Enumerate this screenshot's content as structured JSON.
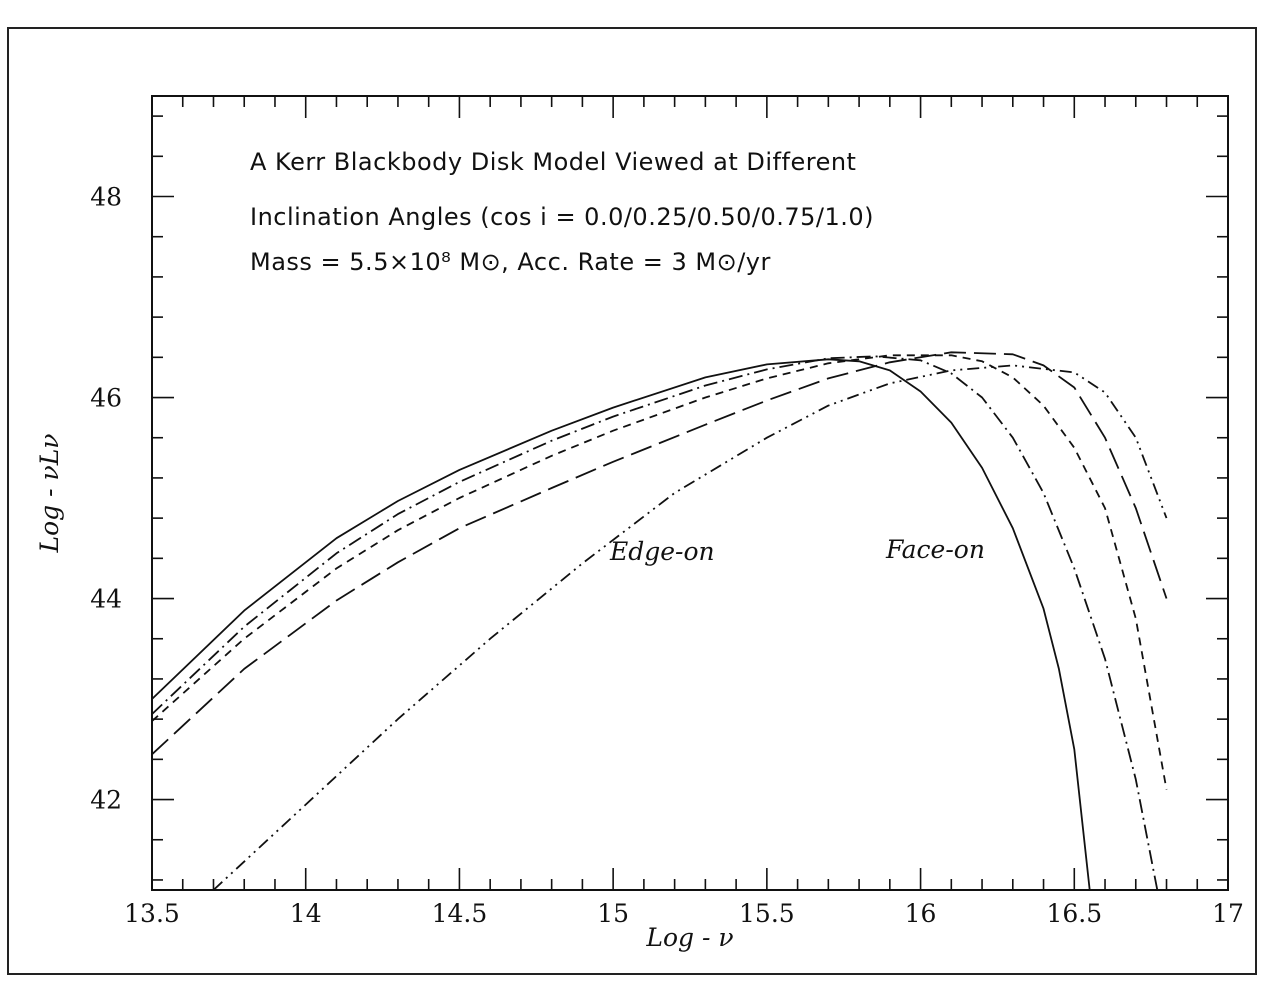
{
  "chart_data": {
    "type": "line",
    "title_lines": [
      "A Kerr Blackbody Disk Model Viewed at Different",
      "Inclination Angles (cos i = 0.0/0.25/0.50/0.75/1.0)",
      "Mass = 5.5×10⁸ M⊙, Acc. Rate = 3 M⊙/yr"
    ],
    "xlabel": "Log - ν",
    "ylabel": "Log - νLν",
    "xlim": [
      13.5,
      17
    ],
    "ylim": [
      41.1,
      49.0
    ],
    "xticks": [
      13.5,
      14,
      14.5,
      15,
      15.5,
      16,
      16.5,
      17
    ],
    "xtick_labels": [
      "13.5",
      "14",
      "14.5",
      "15",
      "15.5",
      "16",
      "16.5",
      "17"
    ],
    "yticks": [
      42,
      44,
      46,
      48
    ],
    "ytick_labels": [
      "42",
      "44",
      "46",
      "48"
    ],
    "annotations": [
      {
        "text": "Edge-on",
        "x": 15.3,
        "y": 44.35
      },
      {
        "text": "Face-on",
        "x": 16.02,
        "y": 44.35
      }
    ],
    "series": [
      {
        "line_style": "solid",
        "x": [
          13.5,
          13.8,
          14.1,
          14.3,
          14.5,
          14.8,
          15.0,
          15.3,
          15.5,
          15.7,
          15.8,
          15.9,
          16.0,
          16.1,
          16.2,
          16.3,
          16.4,
          16.45,
          16.5,
          16.55
        ],
        "y": [
          43.0,
          43.88,
          44.6,
          44.97,
          45.28,
          45.67,
          45.9,
          46.2,
          46.33,
          46.38,
          46.36,
          46.27,
          46.06,
          45.75,
          45.3,
          44.7,
          43.9,
          43.3,
          42.5,
          41.1
        ]
      },
      {
        "line_style": "dash-dot",
        "x": [
          13.5,
          13.8,
          14.1,
          14.3,
          14.5,
          14.8,
          15.0,
          15.3,
          15.5,
          15.7,
          15.85,
          16.0,
          16.1,
          16.2,
          16.3,
          16.4,
          16.5,
          16.6,
          16.7,
          16.77
        ],
        "y": [
          42.85,
          43.72,
          44.45,
          44.84,
          45.16,
          45.57,
          45.81,
          46.12,
          46.28,
          46.39,
          46.41,
          46.37,
          46.24,
          46.0,
          45.6,
          45.05,
          44.3,
          43.4,
          42.2,
          41.1
        ]
      },
      {
        "line_style": "short-dash",
        "x": [
          13.5,
          13.8,
          14.1,
          14.3,
          14.5,
          14.8,
          15.0,
          15.3,
          15.5,
          15.7,
          15.9,
          16.1,
          16.2,
          16.3,
          16.4,
          16.5,
          16.6,
          16.7,
          16.8
        ],
        "y": [
          42.78,
          43.6,
          44.3,
          44.68,
          45.0,
          45.42,
          45.67,
          46.0,
          46.19,
          46.34,
          46.42,
          46.42,
          46.36,
          46.2,
          45.92,
          45.5,
          44.9,
          43.8,
          42.1
        ]
      },
      {
        "line_style": "long-dash",
        "x": [
          13.5,
          13.8,
          14.1,
          14.3,
          14.5,
          14.8,
          15.0,
          15.3,
          15.5,
          15.7,
          15.9,
          16.1,
          16.3,
          16.4,
          16.5,
          16.6,
          16.7,
          16.8
        ],
        "y": [
          42.45,
          43.3,
          43.98,
          44.36,
          44.7,
          45.1,
          45.36,
          45.73,
          45.97,
          46.19,
          46.35,
          46.45,
          46.43,
          46.32,
          46.1,
          45.6,
          44.9,
          44.0
        ]
      },
      {
        "line_style": "dash-dot-dot",
        "x": [
          13.7,
          14.0,
          14.3,
          14.6,
          14.9,
          15.2,
          15.5,
          15.7,
          15.9,
          16.1,
          16.3,
          16.5,
          16.6,
          16.7,
          16.8
        ],
        "y": [
          41.1,
          41.95,
          42.8,
          43.6,
          44.35,
          45.05,
          45.6,
          45.92,
          46.14,
          46.27,
          46.32,
          46.25,
          46.05,
          45.6,
          44.8
        ]
      }
    ]
  }
}
